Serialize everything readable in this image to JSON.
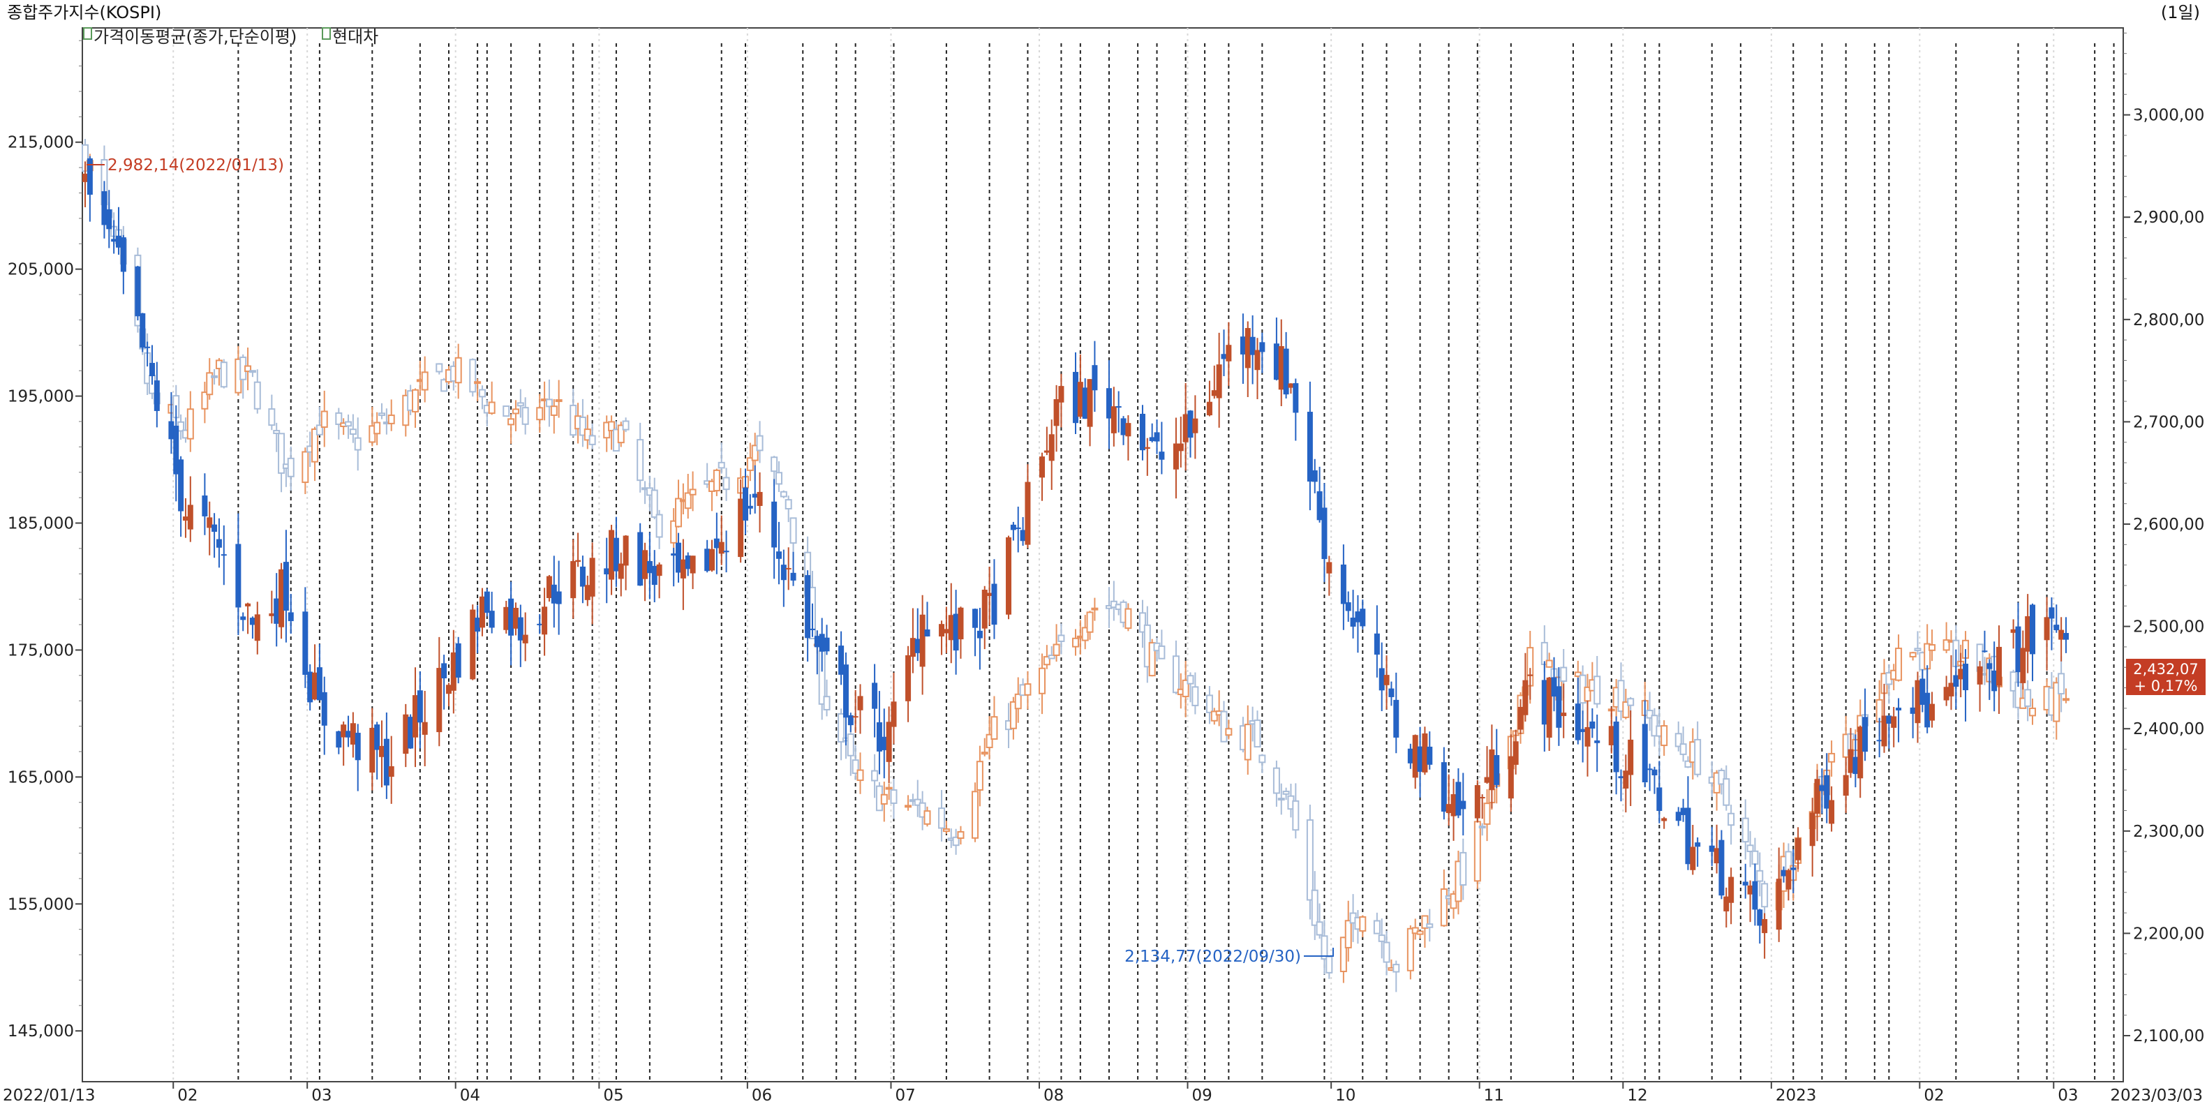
{
  "header": {
    "title": "종합주가지수(KOSPI)",
    "period": "(1일)",
    "legend_1": "가격이동평균(종가,단순이평)",
    "legend_2": "현대차"
  },
  "annotations": {
    "high_label": "2,982,14(2022/01/13)",
    "low_label": "2,134,77(2022/09/30)",
    "last_value": "2,432,07",
    "last_change": "+ 0,17%"
  },
  "colors": {
    "up": "#c0502a",
    "down": "#2563c4",
    "up_light": "#e8935f",
    "down_light": "#a8bcd8",
    "vline": "#222222",
    "grid": "#d8d8d8",
    "badge": "#c43d24"
  },
  "chart_data": {
    "type": "candlestick",
    "title": "종합주가지수(KOSPI)",
    "x_range": [
      "2022/01/13",
      "2023/03/03"
    ],
    "x_tick_labels": [
      "2022/01/13",
      "02",
      "03",
      "04",
      "05",
      "06",
      "07",
      "08",
      "09",
      "10",
      "11",
      "12",
      "2023",
      "02",
      "03",
      "2023/03/03"
    ],
    "left_axis": {
      "ylim": [
        141000,
        224000
      ],
      "ticks": [
        145000,
        155000,
        165000,
        175000,
        185000,
        195000,
        205000,
        215000
      ],
      "tick_labels": [
        "145,000",
        "155,000",
        "165,000",
        "175,000",
        "185,000",
        "195,000",
        "205,000",
        "215,000"
      ]
    },
    "right_axis": {
      "ylim": [
        2055,
        3085
      ],
      "ticks": [
        2100,
        2200,
        2300,
        2400,
        2500,
        2600,
        2700,
        2800,
        2900,
        3000
      ],
      "tick_labels": [
        "2,100,00",
        "2,200,00",
        "2,300,00",
        "2,400,00",
        "2,500,00",
        "2,600,00",
        "2,700,00",
        "2,800,00",
        "2,900,00",
        "3,000,00"
      ]
    },
    "series": [
      {
        "name": "종합주가지수(KOSPI)",
        "axis": "right",
        "anchors": [
          [
            "2022-01-13",
            2962
          ],
          [
            "2022-01-20",
            2860
          ],
          [
            "2022-01-27",
            2720
          ],
          [
            "2022-02-03",
            2690
          ],
          [
            "2022-02-10",
            2750
          ],
          [
            "2022-02-17",
            2740
          ],
          [
            "2022-02-24",
            2650
          ],
          [
            "2022-03-03",
            2700
          ],
          [
            "2022-03-10",
            2680
          ],
          [
            "2022-03-17",
            2700
          ],
          [
            "2022-03-24",
            2730
          ],
          [
            "2022-03-31",
            2750
          ],
          [
            "2022-04-07",
            2720
          ],
          [
            "2022-04-14",
            2700
          ],
          [
            "2022-04-21",
            2720
          ],
          [
            "2022-04-28",
            2680
          ],
          [
            "2022-05-05",
            2690
          ],
          [
            "2022-05-12",
            2600
          ],
          [
            "2022-05-19",
            2620
          ],
          [
            "2022-05-26",
            2640
          ],
          [
            "2022-06-02",
            2670
          ],
          [
            "2022-06-09",
            2620
          ],
          [
            "2022-06-16",
            2440
          ],
          [
            "2022-06-23",
            2350
          ],
          [
            "2022-06-30",
            2330
          ],
          [
            "2022-07-07",
            2320
          ],
          [
            "2022-07-14",
            2300
          ],
          [
            "2022-07-21",
            2390
          ],
          [
            "2022-07-28",
            2430
          ],
          [
            "2022-08-04",
            2470
          ],
          [
            "2022-08-11",
            2520
          ],
          [
            "2022-08-18",
            2520
          ],
          [
            "2022-08-25",
            2460
          ],
          [
            "2022-09-01",
            2440
          ],
          [
            "2022-09-08",
            2400
          ],
          [
            "2022-09-15",
            2390
          ],
          [
            "2022-09-22",
            2320
          ],
          [
            "2022-09-30",
            2155
          ],
          [
            "2022-10-07",
            2230
          ],
          [
            "2022-10-14",
            2170
          ],
          [
            "2022-10-21",
            2220
          ],
          [
            "2022-10-28",
            2260
          ],
          [
            "2022-11-04",
            2340
          ],
          [
            "2022-11-11",
            2470
          ],
          [
            "2022-11-18",
            2440
          ],
          [
            "2022-11-25",
            2440
          ],
          [
            "2022-12-02",
            2430
          ],
          [
            "2022-12-09",
            2390
          ],
          [
            "2022-12-16",
            2370
          ],
          [
            "2022-12-23",
            2320
          ],
          [
            "2022-12-30",
            2236
          ],
          [
            "2023-01-06",
            2290
          ],
          [
            "2023-01-13",
            2380
          ],
          [
            "2023-01-20",
            2400
          ],
          [
            "2023-01-27",
            2480
          ],
          [
            "2023-02-03",
            2470
          ],
          [
            "2023-02-10",
            2470
          ],
          [
            "2023-02-17",
            2450
          ],
          [
            "2023-02-24",
            2420
          ],
          [
            "2023-03-03",
            2432
          ]
        ]
      },
      {
        "name": "현대차",
        "axis": "left",
        "anchors": [
          [
            "2022-01-13",
            211500
          ],
          [
            "2022-01-20",
            205000
          ],
          [
            "2022-01-27",
            196000
          ],
          [
            "2022-02-03",
            186000
          ],
          [
            "2022-02-10",
            183000
          ],
          [
            "2022-02-17",
            177000
          ],
          [
            "2022-02-24",
            180000
          ],
          [
            "2022-03-03",
            170000
          ],
          [
            "2022-03-10",
            168000
          ],
          [
            "2022-03-17",
            166000
          ],
          [
            "2022-03-24",
            170000
          ],
          [
            "2022-03-31",
            174000
          ],
          [
            "2022-04-07",
            179000
          ],
          [
            "2022-04-14",
            177000
          ],
          [
            "2022-04-21",
            180000
          ],
          [
            "2022-04-28",
            181000
          ],
          [
            "2022-05-05",
            183000
          ],
          [
            "2022-05-12",
            181000
          ],
          [
            "2022-05-19",
            180000
          ],
          [
            "2022-05-26",
            184000
          ],
          [
            "2022-06-02",
            187000
          ],
          [
            "2022-06-09",
            181000
          ],
          [
            "2022-06-16",
            174000
          ],
          [
            "2022-06-23",
            170000
          ],
          [
            "2022-06-30",
            168000
          ],
          [
            "2022-07-07",
            178000
          ],
          [
            "2022-07-14",
            176000
          ],
          [
            "2022-07-21",
            178000
          ],
          [
            "2022-07-28",
            185000
          ],
          [
            "2022-08-04",
            194000
          ],
          [
            "2022-08-11",
            195000
          ],
          [
            "2022-08-18",
            194000
          ],
          [
            "2022-08-25",
            190000
          ],
          [
            "2022-09-01",
            192000
          ],
          [
            "2022-09-08",
            198000
          ],
          [
            "2022-09-15",
            200000
          ],
          [
            "2022-09-22",
            196000
          ],
          [
            "2022-09-30",
            182000
          ],
          [
            "2022-10-07",
            176000
          ],
          [
            "2022-10-14",
            169000
          ],
          [
            "2022-10-21",
            166000
          ],
          [
            "2022-10-28",
            162000
          ],
          [
            "2022-11-04",
            166000
          ],
          [
            "2022-11-11",
            172000
          ],
          [
            "2022-11-18",
            170000
          ],
          [
            "2022-11-25",
            168000
          ],
          [
            "2022-12-02",
            166000
          ],
          [
            "2022-12-09",
            163000
          ],
          [
            "2022-12-16",
            159000
          ],
          [
            "2022-12-23",
            157000
          ],
          [
            "2022-12-30",
            153000
          ],
          [
            "2023-01-06",
            160000
          ],
          [
            "2023-01-13",
            165000
          ],
          [
            "2023-01-20",
            168000
          ],
          [
            "2023-01-27",
            172000
          ],
          [
            "2023-02-03",
            170000
          ],
          [
            "2023-02-10",
            172000
          ],
          [
            "2023-02-17",
            174000
          ],
          [
            "2023-02-24",
            176000
          ],
          [
            "2023-03-03",
            177000
          ]
        ]
      }
    ],
    "event_lines": [
      "2022-02-14",
      "2022-02-25",
      "2022-03-03",
      "2022-03-14",
      "2022-03-24",
      "2022-03-30",
      "2022-04-05",
      "2022-04-07",
      "2022-04-12",
      "2022-04-18",
      "2022-04-25",
      "2022-04-29",
      "2022-05-04",
      "2022-05-11",
      "2022-05-26",
      "2022-05-31",
      "2022-06-12",
      "2022-06-19",
      "2022-06-23",
      "2022-07-01",
      "2022-07-12",
      "2022-07-21",
      "2022-07-29",
      "2022-08-05",
      "2022-08-09",
      "2022-08-15",
      "2022-08-21",
      "2022-08-25",
      "2022-08-31",
      "2022-09-04",
      "2022-09-09",
      "2022-09-16",
      "2022-09-29",
      "2022-10-07",
      "2022-10-12",
      "2022-10-19",
      "2022-10-25",
      "2022-10-31",
      "2022-11-07",
      "2022-11-20",
      "2022-11-28",
      "2022-12-05",
      "2022-12-08",
      "2022-12-19",
      "2022-12-25",
      "2023-01-05",
      "2023-01-11",
      "2023-01-16",
      "2023-01-22",
      "2023-01-25",
      "2023-02-08",
      "2023-02-21",
      "2023-02-27",
      "2023-03-09",
      "2023-03-13",
      "2023-03-19",
      "2023-03-26"
    ]
  }
}
